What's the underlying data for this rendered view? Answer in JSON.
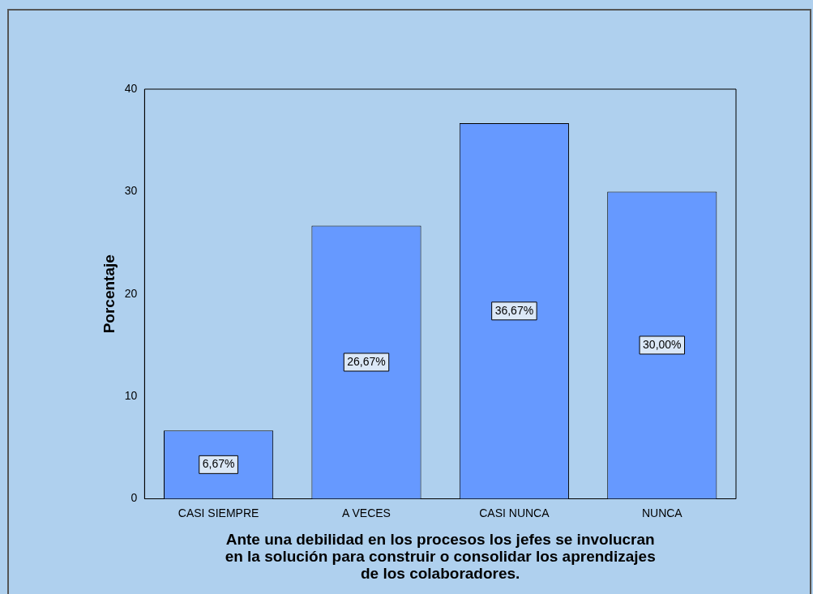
{
  "chart_data": {
    "type": "bar",
    "xlabel": "Ante una debilidad en los procesos los jefes se involucran\nen la solución para construir o consolidar los aprendizajes\nde los colaboradores.",
    "ylabel": "Porcentaje",
    "categories": [
      "CASI SIEMPRE",
      "A VECES",
      "CASI NUNCA",
      "NUNCA"
    ],
    "values": [
      6.67,
      26.67,
      36.67,
      30.0
    ],
    "value_labels": [
      "6,67%",
      "26,67%",
      "36,67%",
      "30,00%"
    ],
    "color": "#6699ff",
    "ylim": [
      0,
      40
    ],
    "yticks": [
      0,
      10,
      20,
      30,
      40
    ],
    "grid": false,
    "legend": false
  }
}
